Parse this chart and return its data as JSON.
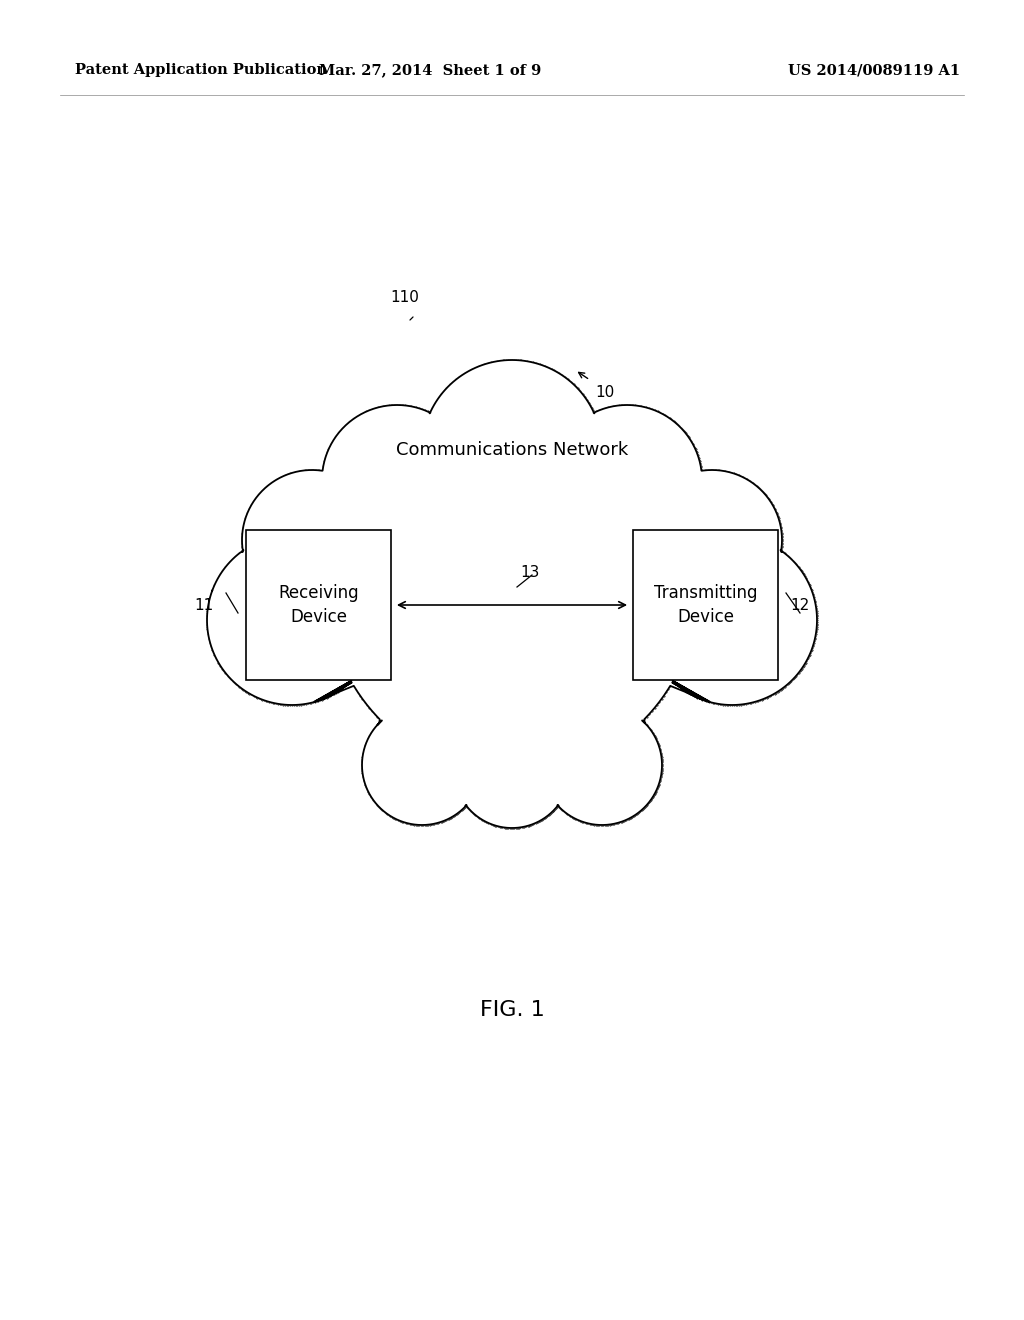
{
  "background_color": "#ffffff",
  "header_left": "Patent Application Publication",
  "header_center": "Mar. 27, 2014  Sheet 1 of 9",
  "header_right": "US 2014/0089119 A1",
  "header_fontsize": 10.5,
  "cloud_label": "110",
  "cloud_network_text": "Communications Network",
  "cloud_network_fontsize": 13,
  "fig_label": "FIG. 1",
  "fig_label_fontsize": 16,
  "ref10_label": "10",
  "ref11_label": "11",
  "ref12_label": "12",
  "ref13_label": "13",
  "receiving_box_text": "Receiving\nDevice",
  "transmitting_box_text": "Transmitting\nDevice",
  "line_color": "#000000",
  "text_color": "#000000"
}
